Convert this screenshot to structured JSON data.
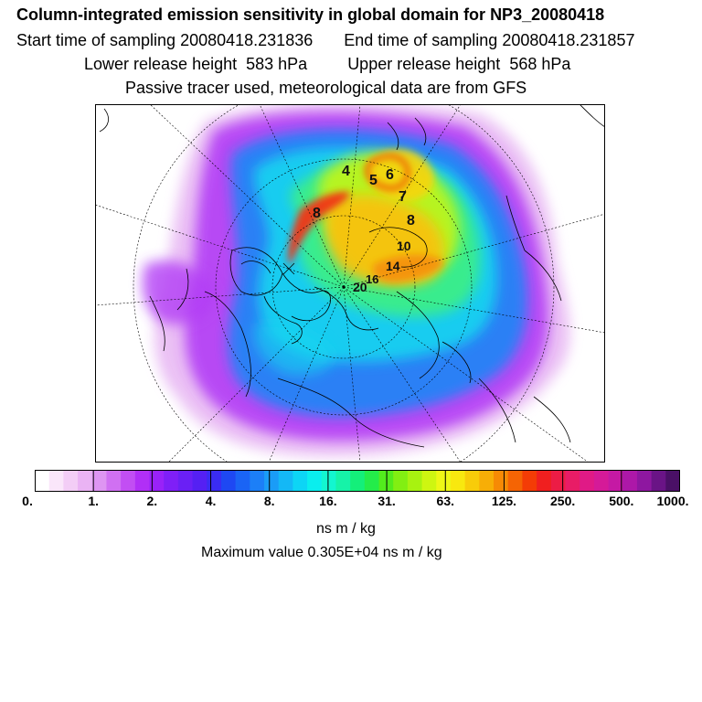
{
  "header": {
    "title": "Column-integrated emission sensitivity in global domain for NP3_20080418",
    "start_label": "Start time of sampling 20080418.231836",
    "end_label": "End time of sampling 20080418.231857",
    "lower_label": "Lower release height",
    "lower_value": "583 hPa",
    "upper_label": "Upper release height",
    "upper_value": "568 hPa",
    "tracer_note": "Passive tracer used, meteorological data are from GFS"
  },
  "map": {
    "projection": "polar stereographic (north pole)",
    "day_labels": [
      "4",
      "5",
      "6",
      "7",
      "8",
      "10",
      "14",
      "20",
      "16",
      "8"
    ]
  },
  "colorbar": {
    "tick_labels": [
      "0.",
      "1.",
      "2.",
      "4.",
      "8.",
      "16.",
      "31.",
      "63.",
      "125.",
      "250.",
      "500.",
      "1000."
    ],
    "units": "ns m / kg",
    "max_value_text": "Maximum value  0.305E+04 ns m / kg",
    "colors": [
      "#ffffff",
      "#fae6fa",
      "#f3cdf6",
      "#eab3f4",
      "#de95f2",
      "#d070f2",
      "#c24ef3",
      "#b12ff6",
      "#9922f8",
      "#7f1ff7",
      "#6a20f5",
      "#5520f3",
      "#3a2cf3",
      "#1e48f3",
      "#1a64f5",
      "#1c7ff7",
      "#1a9cf7",
      "#14b8f6",
      "#0dd5f5",
      "#0aeeee",
      "#13f6d0",
      "#16f3a8",
      "#14ef7a",
      "#24ec4a",
      "#52ec1d",
      "#82ef12",
      "#a8f210",
      "#cef611",
      "#eef716",
      "#f8e80f",
      "#f8cc09",
      "#f7ae06",
      "#f68a05",
      "#f56404",
      "#f43c06",
      "#f01f1f",
      "#ec1c45",
      "#e81c66",
      "#e01a86",
      "#d51a98",
      "#c519a4",
      "#ad18a8",
      "#8e17a0",
      "#6a1486",
      "#4a1066"
    ]
  }
}
